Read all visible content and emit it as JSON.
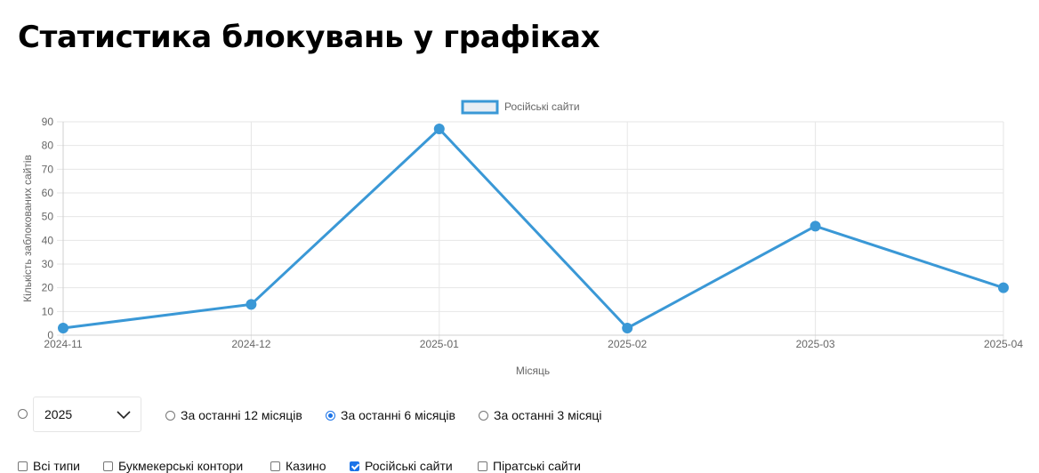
{
  "page": {
    "title": "Статистика блокувань у графіках"
  },
  "chart_data": {
    "type": "line",
    "categories": [
      "2024-11",
      "2024-12",
      "2025-01",
      "2025-02",
      "2025-03",
      "2025-04"
    ],
    "series": [
      {
        "name": "Російські сайти",
        "values": [
          3,
          13,
          87,
          3,
          46,
          20
        ],
        "color": "#3a98d6"
      }
    ],
    "xlabel": "Місяць",
    "ylabel": "Кількість заблокованих сайтів",
    "ylim": [
      0,
      90
    ],
    "yticks": [
      0,
      10,
      20,
      30,
      40,
      50,
      60,
      70,
      80,
      90
    ],
    "grid": true,
    "legend_position": "top-center"
  },
  "controls": {
    "year_select": {
      "value": "2025"
    },
    "period_options": [
      {
        "label": "За останні 12 місяців",
        "checked": false
      },
      {
        "label": "За останні 6 місяців",
        "checked": true
      },
      {
        "label": "За останні 3 місяці",
        "checked": false
      }
    ],
    "type_filters": [
      {
        "label": "Всі типи",
        "checked": false
      },
      {
        "label": "Букмекерські контори",
        "checked": false
      },
      {
        "label": "Казино",
        "checked": false
      },
      {
        "label": "Російські сайти",
        "checked": true
      },
      {
        "label": "Піратські сайти",
        "checked": false
      }
    ]
  },
  "colors": {
    "accent": "#1a73e8",
    "line": "#3a98d6",
    "grid": "#e6e6e6"
  }
}
